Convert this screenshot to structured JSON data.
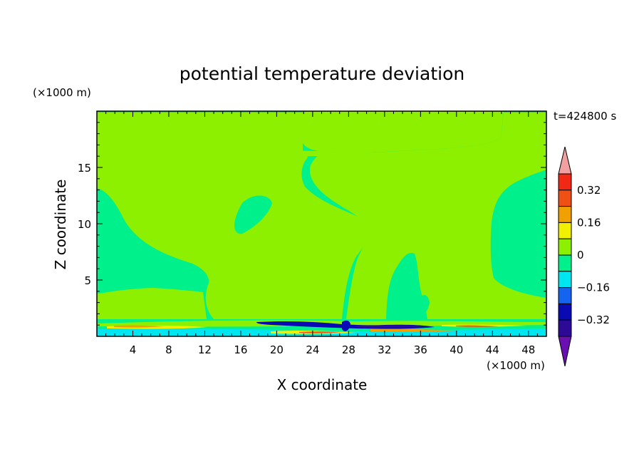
{
  "chart_data": {
    "type": "heatmap",
    "title": "potential temperature deviation",
    "time_label": "t=424800 s",
    "xlabel": "X coordinate",
    "ylabel": "Z coordinate",
    "x_unit": "(×1000 m)",
    "y_unit": "(×1000 m)",
    "xlim": [
      0,
      50
    ],
    "ylim": [
      0,
      20
    ],
    "x_ticks": [
      4,
      8,
      12,
      16,
      20,
      24,
      28,
      32,
      36,
      40,
      44,
      48
    ],
    "y_ticks": [
      5,
      10,
      15
    ],
    "colorbar": {
      "levels": [
        -0.4,
        -0.32,
        -0.24,
        -0.16,
        -0.08,
        0,
        0.08,
        0.16,
        0.24,
        0.32,
        0.4
      ],
      "labels": [
        "0.32",
        "0.16",
        "0",
        "−0.16",
        "−0.32"
      ],
      "label_values": [
        0.32,
        0.16,
        0,
        -0.16,
        -0.32
      ],
      "colors": [
        "#6a0fb0",
        "#2c0a96",
        "#0a0ab4",
        "#1464f0",
        "#00e6f0",
        "#00f08c",
        "#8cf000",
        "#f0f000",
        "#f0a000",
        "#f05014",
        "#f02814",
        "#f0a0a0"
      ]
    },
    "field_colors": {
      "background": "#00f08c",
      "positive_small": "#8cf000",
      "negative_mid": "#00e6f0",
      "negative_strong": "#0a0ab4",
      "negative_peak": "#2c0a96",
      "positive_strong": "#f05014",
      "positive_mid": "#f0a000",
      "positive_weak": "#f0f000"
    }
  }
}
